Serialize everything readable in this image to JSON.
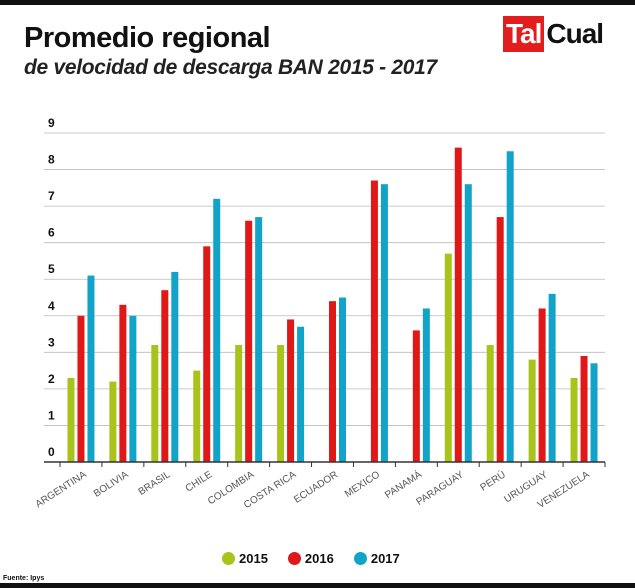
{
  "header": {
    "title": "Promedio regional",
    "subtitle": "de velocidad de descarga BAN 2015 - 2017",
    "logo_left": "Tal",
    "logo_right": "Cual"
  },
  "source": "Fuente: Ipys",
  "colors": {
    "s2015": "#a8c41a",
    "s2016": "#e01818",
    "s2017": "#12a3c8",
    "grid": "#bbbbbb",
    "axis": "#333333"
  },
  "chart_data": {
    "type": "bar",
    "title": "Promedio regional",
    "subtitle": "de velocidad de descarga BAN 2015 - 2017",
    "xlabel": "",
    "ylabel": "",
    "ylim": [
      0,
      9
    ],
    "yticks": [
      "0",
      "1",
      "2",
      "3",
      "4",
      "5",
      "6",
      "7",
      "8",
      "9"
    ],
    "grid": true,
    "legend_position": "bottom",
    "categories": [
      "ARGENTINA",
      "BOLIVIA",
      "BRASIL",
      "CHILE",
      "COLOMBIA",
      "COSTA RICA",
      "ECUADOR",
      "MEXICO",
      "PANAMÁ",
      "PARAGUAY",
      "PERÚ",
      "URUGUAY",
      "VENEZUELA"
    ],
    "series": [
      {
        "name": "2015",
        "values": [
          2.3,
          2.2,
          3.2,
          2.5,
          3.2,
          3.2,
          null,
          null,
          null,
          5.7,
          3.2,
          2.8,
          2.3
        ]
      },
      {
        "name": "2016",
        "values": [
          4.0,
          4.3,
          4.7,
          5.9,
          6.6,
          3.9,
          4.4,
          7.7,
          3.6,
          8.6,
          6.7,
          4.2,
          2.9
        ]
      },
      {
        "name": "2017",
        "values": [
          5.1,
          4.0,
          5.2,
          7.2,
          6.7,
          3.7,
          4.5,
          7.6,
          4.2,
          7.6,
          8.5,
          4.6,
          2.7
        ]
      }
    ]
  }
}
